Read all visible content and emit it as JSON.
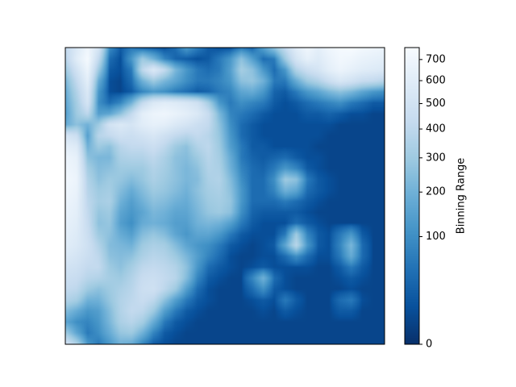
{
  "chart_data": {
    "type": "heatmap",
    "colormap": "Blues_r",
    "colormap_stops": [
      "#08306b",
      "#08519c",
      "#2171b5",
      "#4292c6",
      "#6baed6",
      "#9ecae1",
      "#c6dbef",
      "#deebf7",
      "#f7fbff"
    ],
    "xlabel": "",
    "ylabel": "",
    "x_ticks_shown": false,
    "y_ticks_shown": false,
    "colorbar": {
      "label": "Binning Range",
      "scale": "sqrt",
      "range": [
        0,
        760
      ],
      "ticks": [
        0,
        100,
        200,
        300,
        400,
        500,
        600,
        700
      ],
      "tick_labels": [
        "0",
        "100",
        "200",
        "300",
        "400",
        "500",
        "600",
        "700"
      ]
    },
    "grid_size": [
      28,
      30
    ],
    "values": [
      [
        420,
        560,
        700,
        520,
        90,
        20,
        60,
        30,
        20,
        10,
        40,
        120,
        60,
        20,
        10,
        10,
        60,
        30,
        140,
        260,
        420,
        600,
        700,
        620,
        700,
        740,
        760,
        720,
        700,
        680
      ],
      [
        380,
        600,
        740,
        420,
        40,
        10,
        120,
        300,
        200,
        80,
        30,
        20,
        10,
        20,
        60,
        120,
        260,
        140,
        40,
        60,
        300,
        520,
        640,
        580,
        660,
        720,
        700,
        660,
        640,
        620
      ],
      [
        300,
        500,
        680,
        300,
        20,
        10,
        60,
        400,
        560,
        420,
        220,
        120,
        60,
        40,
        60,
        140,
        320,
        260,
        120,
        40,
        120,
        360,
        460,
        520,
        620,
        680,
        640,
        600,
        580,
        560
      ],
      [
        220,
        420,
        620,
        180,
        10,
        5,
        40,
        200,
        300,
        220,
        160,
        100,
        60,
        60,
        80,
        120,
        260,
        280,
        200,
        60,
        60,
        180,
        300,
        360,
        460,
        540,
        500,
        440,
        420,
        380
      ],
      [
        180,
        360,
        560,
        120,
        10,
        5,
        20,
        80,
        120,
        100,
        60,
        40,
        20,
        30,
        60,
        80,
        160,
        180,
        120,
        30,
        20,
        60,
        120,
        160,
        220,
        260,
        220,
        160,
        120,
        100
      ],
      [
        160,
        320,
        520,
        100,
        40,
        80,
        200,
        420,
        560,
        600,
        580,
        540,
        480,
        320,
        120,
        60,
        100,
        80,
        60,
        20,
        10,
        20,
        40,
        60,
        80,
        100,
        60,
        40,
        20,
        20
      ],
      [
        140,
        300,
        400,
        140,
        160,
        260,
        420,
        620,
        680,
        700,
        660,
        620,
        560,
        440,
        220,
        80,
        60,
        40,
        20,
        10,
        10,
        10,
        20,
        20,
        30,
        20,
        10,
        10,
        5,
        5
      ],
      [
        180,
        260,
        200,
        300,
        500,
        560,
        520,
        600,
        640,
        620,
        560,
        520,
        460,
        420,
        260,
        100,
        40,
        20,
        10,
        10,
        10,
        10,
        10,
        10,
        10,
        5,
        5,
        5,
        5,
        5
      ],
      [
        520,
        460,
        140,
        380,
        420,
        480,
        460,
        500,
        540,
        480,
        420,
        380,
        420,
        380,
        280,
        120,
        40,
        20,
        10,
        10,
        10,
        10,
        10,
        10,
        5,
        5,
        5,
        5,
        5,
        5
      ],
      [
        620,
        580,
        200,
        300,
        260,
        380,
        420,
        420,
        460,
        400,
        300,
        260,
        360,
        400,
        300,
        140,
        60,
        20,
        20,
        10,
        10,
        10,
        10,
        5,
        5,
        5,
        5,
        5,
        5,
        5
      ],
      [
        680,
        640,
        260,
        220,
        220,
        340,
        360,
        360,
        400,
        340,
        260,
        240,
        300,
        380,
        320,
        180,
        60,
        30,
        20,
        30,
        40,
        20,
        10,
        10,
        5,
        5,
        5,
        5,
        5,
        5
      ],
      [
        700,
        660,
        320,
        240,
        260,
        300,
        300,
        300,
        360,
        320,
        260,
        220,
        260,
        360,
        340,
        200,
        80,
        40,
        30,
        60,
        120,
        80,
        20,
        10,
        5,
        5,
        5,
        5,
        5,
        5
      ],
      [
        720,
        680,
        360,
        260,
        300,
        280,
        240,
        280,
        340,
        300,
        260,
        220,
        240,
        340,
        360,
        240,
        100,
        40,
        40,
        100,
        300,
        260,
        60,
        20,
        10,
        5,
        5,
        5,
        5,
        5
      ],
      [
        700,
        660,
        380,
        300,
        320,
        240,
        180,
        240,
        300,
        280,
        240,
        200,
        260,
        320,
        340,
        260,
        120,
        40,
        40,
        80,
        200,
        160,
        40,
        20,
        10,
        5,
        5,
        5,
        5,
        5
      ],
      [
        680,
        640,
        400,
        320,
        340,
        200,
        140,
        200,
        260,
        240,
        200,
        180,
        240,
        300,
        320,
        280,
        120,
        40,
        40,
        40,
        60,
        40,
        20,
        10,
        5,
        5,
        5,
        5,
        5,
        5
      ],
      [
        660,
        620,
        420,
        280,
        300,
        160,
        120,
        160,
        220,
        200,
        160,
        160,
        220,
        280,
        300,
        260,
        100,
        30,
        20,
        20,
        20,
        20,
        10,
        5,
        5,
        5,
        5,
        5,
        5,
        5
      ],
      [
        640,
        600,
        440,
        260,
        280,
        140,
        100,
        180,
        200,
        180,
        140,
        140,
        200,
        220,
        200,
        140,
        60,
        20,
        10,
        10,
        10,
        40,
        20,
        10,
        5,
        5,
        5,
        5,
        5,
        5
      ],
      [
        620,
        580,
        460,
        300,
        260,
        180,
        140,
        240,
        280,
        240,
        160,
        120,
        160,
        160,
        120,
        60,
        20,
        10,
        10,
        10,
        60,
        300,
        80,
        20,
        10,
        60,
        120,
        20,
        5,
        5
      ],
      [
        600,
        560,
        480,
        360,
        240,
        220,
        200,
        300,
        340,
        320,
        240,
        160,
        120,
        100,
        60,
        20,
        10,
        5,
        10,
        20,
        160,
        380,
        120,
        20,
        10,
        80,
        220,
        40,
        5,
        5
      ],
      [
        560,
        520,
        460,
        400,
        260,
        240,
        260,
        340,
        380,
        360,
        300,
        220,
        140,
        80,
        40,
        10,
        5,
        5,
        10,
        10,
        40,
        100,
        40,
        10,
        10,
        60,
        180,
        40,
        5,
        5
      ],
      [
        500,
        480,
        420,
        420,
        300,
        260,
        320,
        400,
        420,
        400,
        360,
        260,
        120,
        40,
        20,
        10,
        5,
        10,
        20,
        10,
        10,
        10,
        10,
        5,
        5,
        20,
        60,
        20,
        5,
        5
      ],
      [
        460,
        440,
        380,
        360,
        320,
        300,
        360,
        440,
        460,
        420,
        380,
        240,
        80,
        20,
        10,
        5,
        5,
        80,
        200,
        40,
        10,
        5,
        5,
        5,
        5,
        10,
        20,
        10,
        5,
        5
      ],
      [
        420,
        400,
        300,
        260,
        300,
        340,
        380,
        460,
        480,
        400,
        300,
        140,
        40,
        10,
        5,
        5,
        5,
        40,
        100,
        20,
        10,
        5,
        5,
        5,
        5,
        5,
        10,
        5,
        5,
        5
      ],
      [
        360,
        320,
        200,
        200,
        280,
        360,
        400,
        440,
        400,
        260,
        140,
        60,
        20,
        10,
        5,
        5,
        5,
        10,
        20,
        10,
        60,
        20,
        5,
        5,
        5,
        40,
        60,
        10,
        5,
        5
      ],
      [
        240,
        180,
        120,
        140,
        240,
        360,
        420,
        400,
        300,
        140,
        60,
        20,
        10,
        5,
        5,
        5,
        5,
        5,
        10,
        5,
        20,
        10,
        5,
        5,
        5,
        20,
        20,
        5,
        5,
        5
      ],
      [
        160,
        100,
        80,
        120,
        220,
        340,
        380,
        320,
        180,
        60,
        20,
        10,
        5,
        5,
        5,
        5,
        5,
        5,
        5,
        5,
        5,
        5,
        5,
        5,
        5,
        5,
        5,
        5,
        5,
        5
      ],
      [
        300,
        160,
        60,
        100,
        180,
        280,
        300,
        200,
        80,
        20,
        10,
        5,
        5,
        5,
        5,
        5,
        5,
        5,
        5,
        5,
        5,
        5,
        5,
        5,
        5,
        5,
        5,
        5,
        5,
        5
      ],
      [
        500,
        340,
        120,
        60,
        120,
        200,
        180,
        80,
        20,
        10,
        5,
        5,
        5,
        5,
        5,
        5,
        5,
        5,
        5,
        5,
        5,
        5,
        5,
        5,
        5,
        5,
        5,
        5,
        5,
        5
      ]
    ]
  }
}
